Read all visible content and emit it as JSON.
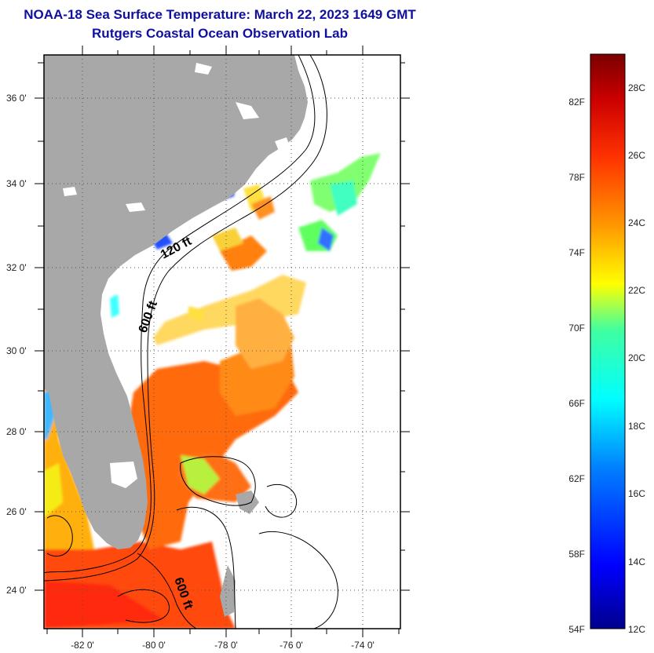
{
  "title": "NOAA-18 Sea Surface Temperature:  March 22, 2023 1649 GMT",
  "subtitle": "Rutgers Coastal Ocean Observation Lab",
  "map": {
    "lon_ticks": [
      "-82 0'",
      "-80 0'",
      "-78 0'",
      "-76 0'",
      "-74 0'"
    ],
    "lat_ticks": [
      "24 0'",
      "26 0'",
      "28 0'",
      "30 0'",
      "32 0'",
      "34 0'",
      "36 0'"
    ],
    "contour_labels": [
      "120 ft",
      "600 ft",
      "600 ft"
    ],
    "colors": {
      "land": "#a8a8a8",
      "ocean_nodata": "#ffffff",
      "frame": "#000000",
      "grid": "#555555"
    }
  },
  "colorbar": {
    "fahrenheit_labels": [
      "82F",
      "78F",
      "74F",
      "70F",
      "66F",
      "62F",
      "58F",
      "54F"
    ],
    "celsius_labels": [
      "28C",
      "26C",
      "24C",
      "22C",
      "20C",
      "18C",
      "16C",
      "14C",
      "12C"
    ],
    "gradient": [
      "#00008c",
      "#0000ff",
      "#0080ff",
      "#00ffff",
      "#40ffa0",
      "#ffff00",
      "#ff9900",
      "#ff3300",
      "#cc0000",
      "#7a0000"
    ]
  }
}
